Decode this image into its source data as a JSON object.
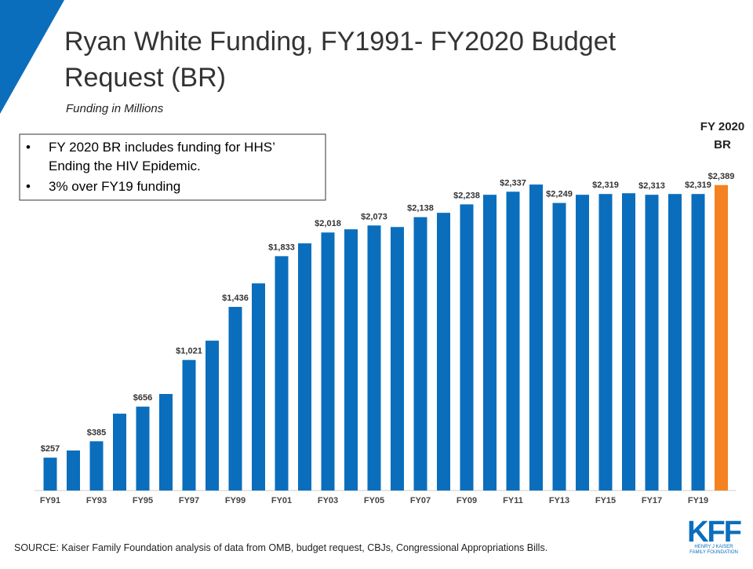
{
  "chart_data": {
    "type": "bar",
    "title_lines": [
      "Ryan White Funding, FY1991- FY2020 Budget",
      "Request (BR)"
    ],
    "subtitle": "Funding in Millions",
    "notes": [
      "FY 2020 BR includes  funding  for HHS’",
      "Ending  the HIV Epidemic.",
      "3% over FY19 funding"
    ],
    "annotation_lines": [
      "FY 2020",
      "BR"
    ],
    "source": "SOURCE: Kaiser Family Foundation analysis of data from OMB, budget request, CBJs, Congressional Appropriations Bills.",
    "logo": "KFF",
    "logo_subtitle_lines": [
      "HENRY J KAISER",
      "FAMILY FOUNDATION"
    ],
    "categories": [
      "FY91",
      null,
      "FY93",
      null,
      "FY95",
      null,
      "FY97",
      null,
      "FY99",
      null,
      "FY01",
      null,
      "FY03",
      null,
      "FY05",
      null,
      "FY07",
      null,
      "FY09",
      null,
      "FY11",
      null,
      "FY13",
      null,
      "FY15",
      null,
      "FY17",
      null,
      "FY19",
      null
    ],
    "values": [
      257,
      313,
      385,
      601,
      656,
      755,
      1021,
      1172,
      1436,
      1620,
      1833,
      1933,
      2018,
      2043,
      2073,
      2061,
      2138,
      2172,
      2238,
      2313,
      2337,
      2393,
      2249,
      2313,
      2319,
      2325,
      2313,
      2319,
      2319,
      2389
    ],
    "value_labels": [
      "$257",
      null,
      "$385",
      null,
      "$656",
      null,
      "$1,021",
      null,
      "$1,436",
      null,
      "$1,833",
      null,
      "$2,018",
      null,
      "$2,073",
      null,
      "$2,138",
      null,
      "$2,238",
      null,
      "$2,337",
      null,
      "$2,249",
      null,
      "$2,319",
      null,
      "$2,313",
      null,
      "$2,319",
      "$2,389"
    ],
    "colors": [
      "#0a6ebd",
      "#0a6ebd",
      "#0a6ebd",
      "#0a6ebd",
      "#0a6ebd",
      "#0a6ebd",
      "#0a6ebd",
      "#0a6ebd",
      "#0a6ebd",
      "#0a6ebd",
      "#0a6ebd",
      "#0a6ebd",
      "#0a6ebd",
      "#0a6ebd",
      "#0a6ebd",
      "#0a6ebd",
      "#0a6ebd",
      "#0a6ebd",
      "#0a6ebd",
      "#0a6ebd",
      "#0a6ebd",
      "#0a6ebd",
      "#0a6ebd",
      "#0a6ebd",
      "#0a6ebd",
      "#0a6ebd",
      "#0a6ebd",
      "#0a6ebd",
      "#0a6ebd",
      "#f58220"
    ],
    "ylim": [
      0,
      2400
    ]
  }
}
